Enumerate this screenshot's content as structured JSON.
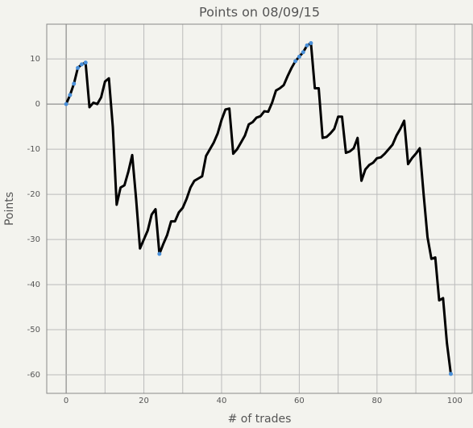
{
  "chart_data": {
    "type": "line",
    "title": "Points on 08/09/15",
    "x_label": "# of trades",
    "y_label": "Points",
    "x": [
      0,
      1,
      2,
      3,
      4,
      5,
      6,
      7,
      8,
      9,
      10,
      11,
      12,
      13,
      14,
      15,
      16,
      17,
      18,
      19,
      20,
      21,
      22,
      23,
      24,
      25,
      26,
      27,
      28,
      29,
      30,
      31,
      32,
      33,
      34,
      35,
      36,
      37,
      38,
      39,
      40,
      41,
      42,
      43,
      44,
      45,
      46,
      47,
      48,
      49,
      50,
      51,
      52,
      53,
      54,
      55,
      56,
      57,
      58,
      59,
      60,
      61,
      62,
      63,
      64,
      65,
      66,
      67,
      68,
      69,
      70,
      71,
      72,
      73,
      74,
      75,
      76,
      77,
      78,
      79,
      80,
      81,
      82,
      83,
      84,
      85,
      86,
      87,
      88,
      89,
      90,
      91,
      92,
      93,
      94,
      95,
      96,
      97,
      98,
      99
    ],
    "series": [
      {
        "name": "Points",
        "color": "#000000",
        "values": [
          0,
          2,
          4.5,
          8,
          8.8,
          9.2,
          -0.7,
          0.3,
          0,
          1.5,
          5,
          5.7,
          -5,
          -22.3,
          -18.5,
          -18,
          -15,
          -11.3,
          -21,
          -32,
          -30,
          -28,
          -24.5,
          -23.3,
          -33.2,
          -31,
          -29,
          -26,
          -26,
          -24,
          -23,
          -21,
          -18.5,
          -17,
          -16.5,
          -16,
          -11.5,
          -10,
          -8.5,
          -6.5,
          -3.5,
          -1.2,
          -1,
          -11,
          -10,
          -8.5,
          -7,
          -4.5,
          -4,
          -3,
          -2.7,
          -1.6,
          -1.7,
          0.3,
          3,
          3.5,
          4.2,
          6.2,
          8,
          9.5,
          10.5,
          11.5,
          13,
          13.5,
          3.5,
          3.5,
          -7.5,
          -7.3,
          -6.5,
          -5.5,
          -2.8,
          -2.8,
          -10.8,
          -10.5,
          -9.8,
          -7.5,
          -17,
          -14.5,
          -13.5,
          -13,
          -12,
          -11.8,
          -11,
          -10,
          -9,
          -7,
          -5.5,
          -3.7,
          -13.3,
          -12,
          -11,
          -9.8,
          -20,
          -29.5,
          -34.3,
          -34,
          -43.5,
          -43,
          -53,
          -59.8
        ]
      }
    ],
    "highlighted": [
      0,
      1,
      2,
      3,
      4,
      5,
      24,
      59,
      60,
      61,
      62,
      63,
      99
    ],
    "highlight_color": "#4a90d9",
    "xlim": [
      -5,
      104.5
    ],
    "ylim": [
      -64.1,
      17.7
    ],
    "xticks": [
      0,
      20,
      40,
      60,
      80,
      100
    ],
    "x_grid": [
      10,
      30,
      50,
      70,
      90
    ],
    "yticks": [
      -60,
      -50,
      -40,
      -30,
      -20,
      -10,
      0,
      10
    ],
    "grid": true
  }
}
